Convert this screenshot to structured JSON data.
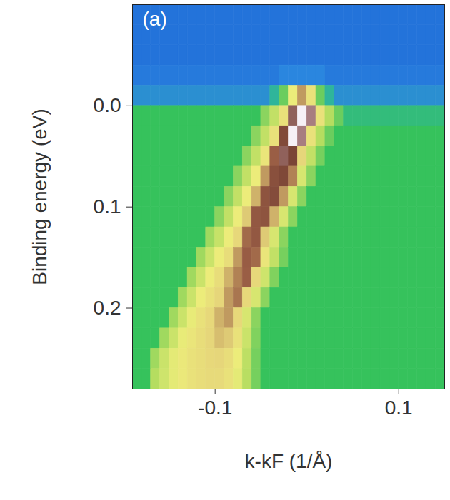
{
  "chart_data": {
    "type": "heatmap",
    "x_label": "k-kF (1/Å)",
    "y_label": "Binding energy (eV)",
    "annotations": [
      "(a)"
    ],
    "xlim": [
      -0.19,
      0.15
    ],
    "xticks": [
      -0.1,
      0.1
    ],
    "ylim": [
      0.28,
      -0.1
    ],
    "yticks": [
      {
        "value": 0,
        "label": "0.0"
      },
      0.1,
      0.2
    ],
    "zlim": [
      0,
      1
    ],
    "kbins": [
      -0.19,
      -0.18,
      -0.17,
      -0.16,
      -0.15,
      -0.14,
      -0.13,
      -0.12,
      -0.11,
      -0.1,
      -0.09,
      -0.08,
      -0.07,
      -0.06,
      -0.05,
      -0.04,
      -0.03,
      -0.02,
      -0.01,
      0,
      0.01,
      0.02,
      0.03,
      0.04,
      0.05,
      0.06,
      0.07,
      0.08,
      0.09,
      0.1,
      0.11,
      0.12,
      0.13,
      0.14,
      0.15
    ],
    "ebins": [
      -0.1,
      -0.08,
      -0.06,
      -0.04,
      -0.02,
      0,
      0.02,
      0.04,
      0.06,
      0.08,
      0.1,
      0.12,
      0.14,
      0.16,
      0.18,
      0.2,
      0.22,
      0.24,
      0.26,
      0.28
    ],
    "intensity": [
      [
        0.05,
        0.05,
        0.05,
        0.05,
        0.05,
        0.05,
        0.05,
        0.05,
        0.05,
        0.05,
        0.05,
        0.05,
        0.05,
        0.05,
        0.05,
        0.05,
        0.05,
        0.05,
        0.05,
        0.05,
        0.05,
        0.05,
        0.05,
        0.05,
        0.05,
        0.05,
        0.05,
        0.05,
        0.05,
        0.05,
        0.05,
        0.05,
        0.05,
        0.05
      ],
      [
        0.05,
        0.05,
        0.05,
        0.05,
        0.05,
        0.05,
        0.05,
        0.05,
        0.05,
        0.05,
        0.05,
        0.05,
        0.05,
        0.05,
        0.05,
        0.05,
        0.05,
        0.05,
        0.05,
        0.05,
        0.05,
        0.05,
        0.05,
        0.05,
        0.05,
        0.05,
        0.05,
        0.05,
        0.05,
        0.05,
        0.05,
        0.05,
        0.05,
        0.05
      ],
      [
        0.05,
        0.05,
        0.05,
        0.05,
        0.05,
        0.05,
        0.05,
        0.05,
        0.05,
        0.05,
        0.05,
        0.05,
        0.05,
        0.05,
        0.05,
        0.05,
        0.05,
        0.05,
        0.05,
        0.05,
        0.05,
        0.05,
        0.05,
        0.05,
        0.05,
        0.05,
        0.05,
        0.05,
        0.05,
        0.05,
        0.05,
        0.05,
        0.05,
        0.05
      ],
      [
        0.07,
        0.07,
        0.07,
        0.07,
        0.07,
        0.07,
        0.07,
        0.07,
        0.07,
        0.07,
        0.07,
        0.07,
        0.07,
        0.07,
        0.07,
        0.07,
        0.1,
        0.1,
        0.1,
        0.1,
        0.1,
        0.07,
        0.07,
        0.07,
        0.07,
        0.07,
        0.07,
        0.07,
        0.07,
        0.07,
        0.07,
        0.07,
        0.07,
        0.07
      ],
      [
        0.12,
        0.12,
        0.12,
        0.12,
        0.12,
        0.12,
        0.12,
        0.12,
        0.12,
        0.12,
        0.12,
        0.12,
        0.12,
        0.12,
        0.12,
        0.2,
        0.35,
        0.55,
        0.7,
        0.6,
        0.35,
        0.2,
        0.12,
        0.12,
        0.12,
        0.12,
        0.12,
        0.12,
        0.12,
        0.12,
        0.12,
        0.12,
        0.12,
        0.12
      ],
      [
        0.3,
        0.3,
        0.3,
        0.3,
        0.3,
        0.3,
        0.3,
        0.3,
        0.3,
        0.3,
        0.3,
        0.3,
        0.3,
        0.3,
        0.38,
        0.45,
        0.6,
        0.9,
        1.0,
        0.92,
        0.6,
        0.42,
        0.35,
        0.25,
        0.25,
        0.25,
        0.25,
        0.25,
        0.25,
        0.25,
        0.25,
        0.25,
        0.25,
        0.25
      ],
      [
        0.3,
        0.3,
        0.3,
        0.3,
        0.3,
        0.3,
        0.3,
        0.3,
        0.3,
        0.3,
        0.3,
        0.3,
        0.3,
        0.38,
        0.45,
        0.6,
        0.85,
        1.0,
        0.92,
        0.6,
        0.42,
        0.35,
        0.3,
        0.3,
        0.3,
        0.3,
        0.3,
        0.3,
        0.3,
        0.3,
        0.3,
        0.3,
        0.3,
        0.3
      ],
      [
        0.3,
        0.3,
        0.3,
        0.3,
        0.3,
        0.3,
        0.3,
        0.3,
        0.3,
        0.3,
        0.3,
        0.3,
        0.38,
        0.45,
        0.58,
        0.75,
        0.9,
        0.88,
        0.65,
        0.45,
        0.36,
        0.3,
        0.3,
        0.3,
        0.3,
        0.3,
        0.3,
        0.3,
        0.3,
        0.3,
        0.3,
        0.3,
        0.3,
        0.3
      ],
      [
        0.3,
        0.3,
        0.3,
        0.3,
        0.3,
        0.3,
        0.3,
        0.3,
        0.3,
        0.3,
        0.3,
        0.38,
        0.45,
        0.55,
        0.7,
        0.82,
        0.86,
        0.72,
        0.5,
        0.38,
        0.3,
        0.3,
        0.3,
        0.3,
        0.3,
        0.3,
        0.3,
        0.3,
        0.3,
        0.3,
        0.3,
        0.3,
        0.3,
        0.3
      ],
      [
        0.3,
        0.3,
        0.3,
        0.3,
        0.3,
        0.3,
        0.3,
        0.3,
        0.3,
        0.3,
        0.38,
        0.45,
        0.55,
        0.68,
        0.8,
        0.84,
        0.7,
        0.5,
        0.38,
        0.3,
        0.3,
        0.3,
        0.3,
        0.3,
        0.3,
        0.3,
        0.3,
        0.3,
        0.3,
        0.3,
        0.3,
        0.3,
        0.3,
        0.3
      ],
      [
        0.3,
        0.3,
        0.3,
        0.3,
        0.3,
        0.3,
        0.3,
        0.3,
        0.3,
        0.38,
        0.45,
        0.55,
        0.66,
        0.78,
        0.8,
        0.68,
        0.5,
        0.38,
        0.3,
        0.3,
        0.3,
        0.3,
        0.3,
        0.3,
        0.3,
        0.3,
        0.3,
        0.3,
        0.3,
        0.3,
        0.3,
        0.3,
        0.3,
        0.3
      ],
      [
        0.3,
        0.3,
        0.3,
        0.3,
        0.3,
        0.3,
        0.3,
        0.3,
        0.4,
        0.46,
        0.55,
        0.64,
        0.74,
        0.78,
        0.66,
        0.5,
        0.38,
        0.3,
        0.3,
        0.3,
        0.3,
        0.3,
        0.3,
        0.3,
        0.3,
        0.3,
        0.3,
        0.3,
        0.3,
        0.3,
        0.3,
        0.3,
        0.3,
        0.3
      ],
      [
        0.3,
        0.3,
        0.3,
        0.3,
        0.3,
        0.3,
        0.3,
        0.4,
        0.47,
        0.55,
        0.62,
        0.7,
        0.76,
        0.74,
        0.58,
        0.45,
        0.36,
        0.3,
        0.3,
        0.3,
        0.3,
        0.3,
        0.3,
        0.3,
        0.3,
        0.3,
        0.3,
        0.3,
        0.3,
        0.3,
        0.3,
        0.3,
        0.3,
        0.3
      ],
      [
        0.3,
        0.3,
        0.3,
        0.3,
        0.3,
        0.3,
        0.4,
        0.47,
        0.55,
        0.62,
        0.68,
        0.72,
        0.75,
        0.64,
        0.48,
        0.37,
        0.3,
        0.3,
        0.3,
        0.3,
        0.3,
        0.3,
        0.3,
        0.3,
        0.3,
        0.3,
        0.3,
        0.3,
        0.3,
        0.3,
        0.3,
        0.3,
        0.3,
        0.3
      ],
      [
        0.3,
        0.3,
        0.3,
        0.3,
        0.3,
        0.4,
        0.47,
        0.55,
        0.6,
        0.65,
        0.7,
        0.73,
        0.64,
        0.5,
        0.38,
        0.3,
        0.3,
        0.3,
        0.3,
        0.3,
        0.3,
        0.3,
        0.3,
        0.3,
        0.3,
        0.3,
        0.3,
        0.3,
        0.3,
        0.3,
        0.3,
        0.3,
        0.3,
        0.3
      ],
      [
        0.3,
        0.3,
        0.3,
        0.3,
        0.4,
        0.47,
        0.54,
        0.6,
        0.64,
        0.68,
        0.7,
        0.64,
        0.5,
        0.38,
        0.3,
        0.3,
        0.3,
        0.3,
        0.3,
        0.3,
        0.3,
        0.3,
        0.3,
        0.3,
        0.3,
        0.3,
        0.3,
        0.3,
        0.3,
        0.3,
        0.3,
        0.3,
        0.3,
        0.3
      ],
      [
        0.3,
        0.3,
        0.3,
        0.4,
        0.47,
        0.54,
        0.58,
        0.62,
        0.65,
        0.67,
        0.66,
        0.6,
        0.47,
        0.37,
        0.3,
        0.3,
        0.3,
        0.3,
        0.3,
        0.3,
        0.3,
        0.3,
        0.3,
        0.3,
        0.3,
        0.3,
        0.3,
        0.3,
        0.3,
        0.3,
        0.3,
        0.3,
        0.3,
        0.3
      ],
      [
        0.3,
        0.3,
        0.4,
        0.47,
        0.53,
        0.57,
        0.6,
        0.62,
        0.64,
        0.65,
        0.62,
        0.55,
        0.44,
        0.36,
        0.3,
        0.3,
        0.3,
        0.3,
        0.3,
        0.3,
        0.3,
        0.3,
        0.3,
        0.3,
        0.3,
        0.3,
        0.3,
        0.3,
        0.3,
        0.3,
        0.3,
        0.3,
        0.3,
        0.3
      ],
      [
        0.3,
        0.3,
        0.42,
        0.48,
        0.53,
        0.57,
        0.6,
        0.62,
        0.63,
        0.63,
        0.6,
        0.53,
        0.43,
        0.36,
        0.3,
        0.3,
        0.3,
        0.3,
        0.3,
        0.3,
        0.3,
        0.3,
        0.3,
        0.3,
        0.3,
        0.3,
        0.3,
        0.3,
        0.3,
        0.3,
        0.3,
        0.3,
        0.3,
        0.3
      ]
    ]
  }
}
